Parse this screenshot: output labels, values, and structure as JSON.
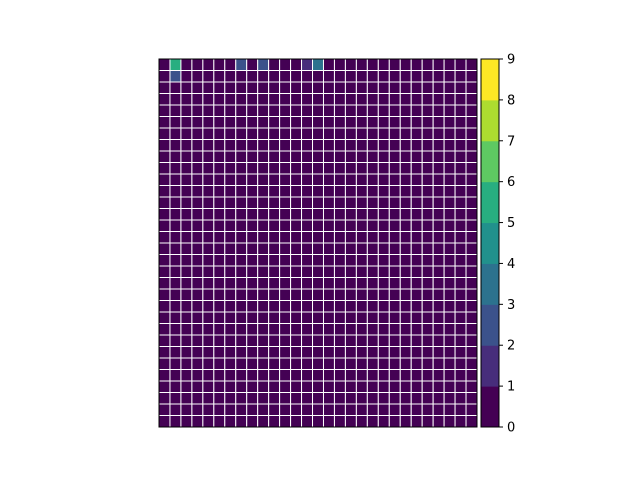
{
  "chart_data": {
    "type": "heatmap",
    "title": "",
    "xlabel": "",
    "ylabel": "",
    "rows": 32,
    "cols": 29,
    "value_range": [
      0,
      9
    ],
    "grid_lines": true,
    "grid_color": "#ffffff",
    "axis_ticks": false,
    "colormap": "viridis",
    "colorbar": {
      "ticks": [
        0,
        1,
        2,
        3,
        4,
        5,
        6,
        7,
        8,
        9
      ],
      "tick_labels": [
        "0",
        "1",
        "2",
        "3",
        "4",
        "5",
        "6",
        "7",
        "8",
        "9"
      ],
      "colors": [
        "#440154",
        "#472d7b",
        "#3b528b",
        "#2c728e",
        "#21918c",
        "#28ae80",
        "#5ec962",
        "#addc30",
        "#fde725"
      ]
    },
    "values": [
      [
        0,
        5,
        0,
        0,
        0,
        0,
        0,
        2,
        0,
        2,
        0,
        0,
        0,
        1,
        3,
        0,
        0,
        0,
        0,
        0,
        0,
        0,
        0,
        0,
        0,
        0,
        0,
        0,
        0
      ],
      [
        0,
        2,
        0,
        0,
        0,
        0,
        0,
        0,
        0,
        0,
        0,
        0,
        0,
        0,
        0,
        0,
        0,
        0,
        0,
        0,
        0,
        0,
        0,
        0,
        0,
        0,
        0,
        0,
        0
      ],
      [
        0,
        0,
        0,
        0,
        0,
        0,
        0,
        0,
        0,
        0,
        0,
        0,
        0,
        0,
        0,
        0,
        0,
        0,
        0,
        0,
        0,
        0,
        0,
        0,
        0,
        0,
        0,
        0,
        0
      ],
      [
        0,
        0,
        0,
        0,
        0,
        0,
        0,
        0,
        0,
        0,
        0,
        0,
        0,
        0,
        0,
        0,
        0,
        0,
        0,
        0,
        0,
        0,
        0,
        0,
        0,
        0,
        0,
        0,
        0
      ],
      [
        0,
        0,
        0,
        0,
        0,
        0,
        0,
        0,
        0,
        0,
        0,
        0,
        0,
        0,
        0,
        0,
        0,
        0,
        0,
        0,
        0,
        0,
        0,
        0,
        0,
        0,
        0,
        0,
        0
      ],
      [
        0,
        0,
        0,
        0,
        0,
        0,
        0,
        0,
        0,
        0,
        0,
        0,
        0,
        0,
        0,
        0,
        0,
        0,
        0,
        0,
        0,
        0,
        0,
        0,
        0,
        0,
        0,
        0,
        0
      ],
      [
        0,
        0,
        0,
        0,
        0,
        0,
        0,
        0,
        0,
        0,
        0,
        0,
        0,
        0,
        0,
        0,
        0,
        0,
        0,
        0,
        0,
        0,
        0,
        0,
        0,
        0,
        0,
        0,
        0
      ],
      [
        0,
        0,
        0,
        0,
        0,
        0,
        0,
        0,
        0,
        0,
        0,
        0,
        0,
        0,
        0,
        0,
        0,
        0,
        0,
        0,
        0,
        0,
        0,
        0,
        0,
        0,
        0,
        0,
        0
      ],
      [
        0,
        0,
        0,
        0,
        0,
        0,
        0,
        0,
        0,
        0,
        0,
        0,
        0,
        0,
        0,
        0,
        0,
        0,
        0,
        0,
        0,
        0,
        0,
        0,
        0,
        0,
        0,
        0,
        0
      ],
      [
        0,
        0,
        0,
        0,
        0,
        0,
        0,
        0,
        0,
        0,
        0,
        0,
        0,
        0,
        0,
        0,
        0,
        0,
        0,
        0,
        0,
        0,
        0,
        0,
        0,
        0,
        0,
        0,
        0
      ],
      [
        0,
        0,
        0,
        0,
        0,
        0,
        0,
        0,
        0,
        0,
        0,
        0,
        0,
        0,
        0,
        0,
        0,
        0,
        0,
        0,
        0,
        0,
        0,
        0,
        0,
        0,
        0,
        0,
        0
      ],
      [
        0,
        0,
        0,
        0,
        0,
        0,
        0,
        0,
        0,
        0,
        0,
        0,
        0,
        0,
        0,
        0,
        0,
        0,
        0,
        0,
        0,
        0,
        0,
        0,
        0,
        0,
        0,
        0,
        0
      ],
      [
        0,
        0,
        0,
        0,
        0,
        0,
        0,
        0,
        0,
        0,
        0,
        0,
        0,
        0,
        0,
        0,
        0,
        0,
        0,
        0,
        0,
        0,
        0,
        0,
        0,
        0,
        0,
        0,
        0
      ],
      [
        0,
        0,
        0,
        0,
        0,
        0,
        0,
        0,
        0,
        0,
        0,
        0,
        0,
        0,
        0,
        0,
        0,
        0,
        0,
        0,
        0,
        0,
        0,
        0,
        0,
        0,
        0,
        0,
        0
      ],
      [
        0,
        0,
        0,
        0,
        0,
        0,
        0,
        0,
        0,
        0,
        0,
        0,
        0,
        0,
        0,
        0,
        0,
        0,
        0,
        0,
        0,
        0,
        0,
        0,
        0,
        0,
        0,
        0,
        0
      ],
      [
        0,
        0,
        0,
        0,
        0,
        0,
        0,
        0,
        0,
        0,
        0,
        0,
        0,
        0,
        0,
        0,
        0,
        0,
        0,
        0,
        0,
        0,
        0,
        0,
        0,
        0,
        0,
        0,
        0
      ],
      [
        0,
        0,
        0,
        0,
        0,
        0,
        0,
        0,
        0,
        0,
        0,
        0,
        0,
        0,
        0,
        0,
        0,
        0,
        0,
        0,
        0,
        0,
        0,
        0,
        0,
        0,
        0,
        0,
        0
      ],
      [
        0,
        0,
        0,
        0,
        0,
        0,
        0,
        0,
        0,
        0,
        0,
        0,
        0,
        0,
        0,
        0,
        0,
        0,
        0,
        0,
        0,
        0,
        0,
        0,
        0,
        0,
        0,
        0,
        0
      ],
      [
        0,
        0,
        0,
        0,
        0,
        0,
        0,
        0,
        0,
        0,
        0,
        0,
        0,
        0,
        0,
        0,
        0,
        0,
        0,
        0,
        0,
        0,
        0,
        0,
        0,
        0,
        0,
        0,
        0
      ],
      [
        0,
        0,
        0,
        0,
        0,
        0,
        0,
        0,
        0,
        0,
        0,
        0,
        0,
        0,
        0,
        0,
        0,
        0,
        0,
        0,
        0,
        0,
        0,
        0,
        0,
        0,
        0,
        0,
        0
      ],
      [
        0,
        0,
        0,
        0,
        0,
        0,
        0,
        0,
        0,
        0,
        0,
        0,
        0,
        0,
        0,
        0,
        0,
        0,
        0,
        0,
        0,
        0,
        0,
        0,
        0,
        0,
        0,
        0,
        0
      ],
      [
        0,
        0,
        0,
        0,
        0,
        0,
        0,
        0,
        0,
        0,
        0,
        0,
        0,
        0,
        0,
        0,
        0,
        0,
        0,
        0,
        0,
        0,
        0,
        0,
        0,
        0,
        0,
        0,
        0
      ],
      [
        0,
        0,
        0,
        0,
        0,
        0,
        0,
        0,
        0,
        0,
        0,
        0,
        0,
        0,
        0,
        0,
        0,
        0,
        0,
        0,
        0,
        0,
        0,
        0,
        0,
        0,
        0,
        0,
        0
      ],
      [
        0,
        0,
        0,
        0,
        0,
        0,
        0,
        0,
        0,
        0,
        0,
        0,
        0,
        0,
        0,
        0,
        0,
        0,
        0,
        0,
        0,
        0,
        0,
        0,
        0,
        0,
        0,
        0,
        0
      ],
      [
        0,
        0,
        0,
        0,
        0,
        0,
        0,
        0,
        0,
        0,
        0,
        0,
        0,
        0,
        0,
        0,
        0,
        0,
        0,
        0,
        0,
        0,
        0,
        0,
        0,
        0,
        0,
        0,
        0
      ],
      [
        0,
        0,
        0,
        0,
        0,
        0,
        0,
        0,
        0,
        0,
        0,
        0,
        0,
        0,
        0,
        0,
        0,
        0,
        0,
        0,
        0,
        0,
        0,
        0,
        0,
        0,
        0,
        0,
        0
      ],
      [
        0,
        0,
        0,
        0,
        0,
        0,
        0,
        0,
        0,
        0,
        0,
        0,
        0,
        0,
        0,
        0,
        0,
        0,
        0,
        0,
        0,
        0,
        0,
        0,
        0,
        0,
        0,
        0,
        0
      ],
      [
        0,
        0,
        0,
        0,
        0,
        0,
        0,
        0,
        0,
        0,
        0,
        0,
        0,
        0,
        0,
        0,
        0,
        0,
        0,
        0,
        0,
        0,
        0,
        0,
        0,
        0,
        0,
        0,
        0
      ],
      [
        0,
        0,
        0,
        0,
        0,
        0,
        0,
        0,
        0,
        0,
        0,
        0,
        0,
        0,
        0,
        0,
        0,
        0,
        0,
        0,
        0,
        0,
        0,
        0,
        0,
        0,
        0,
        0,
        0
      ],
      [
        0,
        0,
        0,
        0,
        0,
        0,
        0,
        0,
        0,
        0,
        0,
        0,
        0,
        0,
        0,
        0,
        0,
        0,
        0,
        0,
        0,
        0,
        0,
        0,
        0,
        0,
        0,
        0,
        0
      ],
      [
        0,
        0,
        0,
        0,
        0,
        0,
        0,
        0,
        0,
        0,
        0,
        0,
        0,
        0,
        0,
        0,
        0,
        0,
        0,
        0,
        0,
        0,
        0,
        0,
        0,
        0,
        0,
        0,
        0
      ],
      [
        0,
        0,
        0,
        0,
        0,
        0,
        0,
        0,
        0,
        0,
        0,
        0,
        0,
        0,
        0,
        0,
        0,
        0,
        0,
        0,
        0,
        0,
        0,
        0,
        0,
        0,
        0,
        0,
        0
      ]
    ]
  }
}
